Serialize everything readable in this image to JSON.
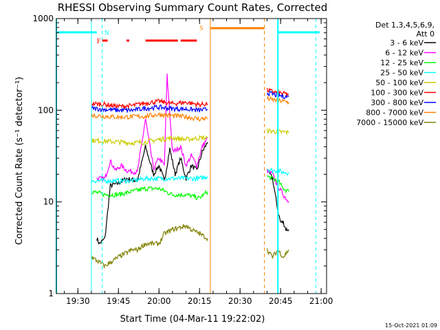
{
  "chart_data": {
    "type": "line",
    "title": "RHESSI Observing Summary Count Rates, Corrected",
    "xlabel": "Start Time (04-Mar-11 19:22:02)",
    "ylabel": "Corrected Count Rate (s⁻¹ detector⁻¹)",
    "yscale": "log",
    "ylim": [
      1,
      1000
    ],
    "xlim": [
      "19:22:02",
      "21:02"
    ],
    "x_ticks": [
      "19:30",
      "19:45",
      "20:00",
      "20:15",
      "20:30",
      "20:45",
      "21:00"
    ],
    "y_ticks": [
      "1",
      "10",
      "100",
      "1000"
    ],
    "legend_header": [
      "Det 1,3,4,5,6,9,",
      "Att 0"
    ],
    "legend_position": "right",
    "timestamp": "15-Oct-2021 01:09",
    "annotations": {
      "N": {
        "label": "N",
        "time": "19:39"
      },
      "S": {
        "label": "S",
        "time": "20:18"
      },
      "F": {
        "label": "F",
        "time": "19:37"
      }
    },
    "series": [
      {
        "name": "3 - 6 keV",
        "color": "#000000",
        "segments": [
          {
            "x": [
              "19:37",
              "19:38",
              "19:40",
              "19:42",
              "19:45",
              "19:48",
              "19:52",
              "19:55",
              "19:58",
              "20:00",
              "20:02",
              "20:04",
              "20:06",
              "20:08",
              "20:10",
              "20:12",
              "20:14",
              "20:16",
              "20:18"
            ],
            "y": [
              4,
              3.5,
              4,
              15,
              16,
              18,
              17,
              40,
              20,
              25,
              17,
              38,
              20,
              30,
              18,
              25,
              22,
              35,
              45
            ]
          },
          {
            "x": [
              "20:40",
              "20:41",
              "20:42",
              "20:43",
              "20:44",
              "20:45",
              "20:46",
              "20:47",
              "20:48"
            ],
            "y": [
              22,
              20,
              18,
              12,
              8,
              6,
              6,
              5,
              5
            ]
          }
        ]
      },
      {
        "name": "6 - 12 keV",
        "color": "#ff00ff",
        "segments": [
          {
            "x": [
              "19:37",
              "19:40",
              "19:42",
              "19:44",
              "19:46",
              "19:48",
              "19:52",
              "19:55",
              "19:58",
              "20:00",
              "20:02",
              "20:03",
              "20:05",
              "20:08",
              "20:10",
              "20:12",
              "20:14",
              "20:16",
              "20:18"
            ],
            "y": [
              18,
              18,
              28,
              22,
              25,
              22,
              21,
              80,
              23,
              30,
              25,
              240,
              35,
              40,
              25,
              32,
              25,
              40,
              50
            ]
          },
          {
            "x": [
              "20:40",
              "20:42",
              "20:44",
              "20:46",
              "20:48"
            ],
            "y": [
              22,
              20,
              15,
              12,
              10
            ]
          }
        ]
      },
      {
        "name": "12 - 25 keV",
        "color": "#00ff00",
        "segments": [
          {
            "x": [
              "19:35",
              "19:40",
              "19:45",
              "19:50",
              "19:55",
              "20:00",
              "20:05",
              "20:10",
              "20:15",
              "20:18"
            ],
            "y": [
              13,
              12,
              12,
              13,
              14,
              14,
              12,
              12,
              11,
              13
            ]
          },
          {
            "x": [
              "20:40",
              "20:42",
              "20:44",
              "20:46",
              "20:48"
            ],
            "y": [
              19,
              18,
              17,
              14,
              13
            ]
          }
        ]
      },
      {
        "name": "25 - 50 keV",
        "color": "#00ffff",
        "segments": [
          {
            "x": [
              "19:35",
              "19:40",
              "19:45",
              "19:50",
              "19:55",
              "20:00",
              "20:05",
              "20:10",
              "20:15",
              "20:18"
            ],
            "y": [
              17,
              17,
              17,
              17,
              18,
              18,
              18,
              18,
              18,
              19
            ]
          },
          {
            "x": [
              "20:40",
              "20:42",
              "20:44",
              "20:46",
              "20:48"
            ],
            "y": [
              23,
              22,
              22,
              21,
              21
            ]
          }
        ]
      },
      {
        "name": "50 - 100 keV",
        "color": "#cccc00",
        "segments": [
          {
            "x": [
              "19:35",
              "19:40",
              "19:45",
              "19:50",
              "19:55",
              "20:00",
              "20:05",
              "20:10",
              "20:15",
              "20:18"
            ],
            "y": [
              47,
              46,
              45,
              44,
              45,
              48,
              50,
              48,
              50,
              50
            ]
          },
          {
            "x": [
              "20:40",
              "20:42",
              "20:44",
              "20:46",
              "20:48"
            ],
            "y": [
              60,
              59,
              58,
              58,
              57
            ]
          }
        ]
      },
      {
        "name": "100 - 300 keV",
        "color": "#ff0000",
        "segments": [
          {
            "x": [
              "19:35",
              "19:40",
              "19:45",
              "19:50",
              "19:55",
              "20:00",
              "20:05",
              "20:10",
              "20:15",
              "20:18"
            ],
            "y": [
              118,
              116,
              110,
              112,
              120,
              125,
              118,
              122,
              115,
              118
            ]
          },
          {
            "x": [
              "20:40",
              "20:42",
              "20:44",
              "20:46",
              "20:48"
            ],
            "y": [
              165,
              160,
              155,
              152,
              150
            ]
          }
        ]
      },
      {
        "name": "300 - 800 keV",
        "color": "#0000ff",
        "segments": [
          {
            "x": [
              "19:35",
              "19:40",
              "19:45",
              "19:50",
              "19:55",
              "20:00",
              "20:05",
              "20:10",
              "20:15",
              "20:18"
            ],
            "y": [
              105,
              102,
              100,
              100,
              105,
              108,
              104,
              103,
              100,
              102
            ]
          },
          {
            "x": [
              "20:40",
              "20:42",
              "20:44",
              "20:46",
              "20:48"
            ],
            "y": [
              155,
              150,
              145,
              142,
              140
            ]
          }
        ]
      },
      {
        "name": "800 - 7000 keV",
        "color": "#ff8000",
        "segments": [
          {
            "x": [
              "19:35",
              "19:40",
              "19:45",
              "19:50",
              "19:55",
              "20:00",
              "20:05",
              "20:10",
              "20:15",
              "20:18"
            ],
            "y": [
              88,
              86,
              84,
              85,
              86,
              90,
              87,
              85,
              80,
              82
            ]
          },
          {
            "x": [
              "20:40",
              "20:42",
              "20:44",
              "20:46",
              "20:48"
            ],
            "y": [
              135,
              130,
              128,
              125,
              122
            ]
          }
        ]
      },
      {
        "name": "7000 - 15000 keV",
        "color": "#808000",
        "segments": [
          {
            "x": [
              "19:35",
              "19:40",
              "19:45",
              "19:50",
              "19:52",
              "19:55",
              "20:00",
              "20:02",
              "20:05",
              "20:10",
              "20:12",
              "20:15",
              "20:18"
            ],
            "y": [
              2.5,
              2,
              2.5,
              3,
              3,
              3.5,
              3.5,
              4.5,
              5,
              5.5,
              5,
              4.5,
              4
            ]
          },
          {
            "x": [
              "20:40",
              "20:42",
              "20:44",
              "20:46",
              "20:48"
            ],
            "y": [
              3,
              2.5,
              3,
              2.5,
              3
            ]
          }
        ]
      }
    ]
  }
}
